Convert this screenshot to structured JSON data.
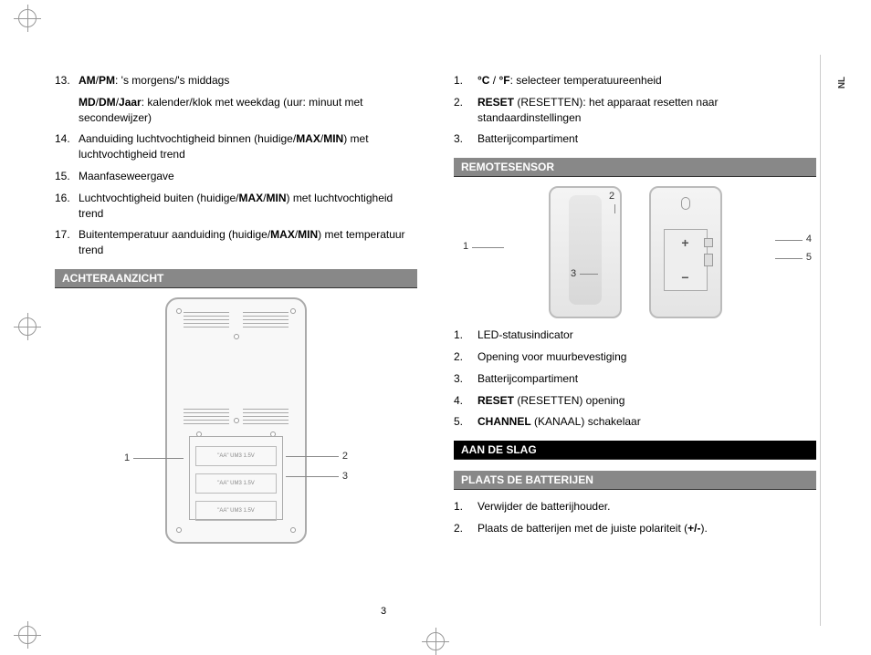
{
  "lang": "NL",
  "pageNumber": "3",
  "leftColumn": {
    "list1": [
      {
        "n": "13.",
        "parts": [
          {
            "bold": true,
            "t": "AM"
          },
          {
            "t": "/"
          },
          {
            "bold": true,
            "t": "PM"
          },
          {
            "t": ": 's morgens/'s middags"
          }
        ]
      },
      {
        "sub": true,
        "parts": [
          {
            "bold": true,
            "t": "MD"
          },
          {
            "t": "/"
          },
          {
            "bold": true,
            "t": "DM"
          },
          {
            "t": "/"
          },
          {
            "bold": true,
            "t": "Jaar"
          },
          {
            "t": ": kalender/klok met weekdag (uur: minuut met secondewijzer)"
          }
        ]
      },
      {
        "n": "14.",
        "parts": [
          {
            "t": "Aanduiding luchtvochtigheid binnen (huidige/"
          },
          {
            "bold": true,
            "t": "MAX"
          },
          {
            "t": "/"
          },
          {
            "bold": true,
            "t": "MIN"
          },
          {
            "t": ") met luchtvochtigheid trend"
          }
        ]
      },
      {
        "n": "15.",
        "parts": [
          {
            "t": "Maanfaseweergave"
          }
        ]
      },
      {
        "n": "16.",
        "parts": [
          {
            "t": "Luchtvochtigheid buiten (huidige/"
          },
          {
            "bold": true,
            "t": "MAX"
          },
          {
            "t": "/"
          },
          {
            "bold": true,
            "t": "MIN"
          },
          {
            "t": ") met luchtvochtigheid trend"
          }
        ]
      },
      {
        "n": "17.",
        "parts": [
          {
            "t": "Buitentemperatuur aanduiding (huidige/"
          },
          {
            "bold": true,
            "t": "MAX"
          },
          {
            "t": "/"
          },
          {
            "bold": true,
            "t": "MIN"
          },
          {
            "t": ") met temperatuur trend"
          }
        ]
      }
    ],
    "section1": "ACHTERAANZICHT",
    "backCallouts": [
      "1",
      "2",
      "3"
    ]
  },
  "rightColumn": {
    "list1": [
      {
        "n": "1.",
        "parts": [
          {
            "bold": true,
            "t": "°C"
          },
          {
            "t": " / "
          },
          {
            "bold": true,
            "t": "°F"
          },
          {
            "t": ": selecteer temperatuureenheid"
          }
        ]
      },
      {
        "n": "2.",
        "parts": [
          {
            "bold": true,
            "t": "RESET"
          },
          {
            "t": " (RESETTEN): het apparaat resetten naar standaardinstellingen"
          }
        ]
      },
      {
        "n": "3.",
        "parts": [
          {
            "t": "Batterijcompartiment"
          }
        ]
      }
    ],
    "section1": "REMOTESENSOR",
    "remoteCallouts": [
      "1",
      "2",
      "3",
      "4",
      "5"
    ],
    "list2": [
      {
        "n": "1.",
        "parts": [
          {
            "t": "LED-statusindicator"
          }
        ]
      },
      {
        "n": "2.",
        "parts": [
          {
            "t": "Opening voor muurbevestiging"
          }
        ]
      },
      {
        "n": "3.",
        "parts": [
          {
            "t": "Batterijcompartiment"
          }
        ]
      },
      {
        "n": "4.",
        "parts": [
          {
            "bold": true,
            "t": "RESET"
          },
          {
            "t": " (RESETTEN) opening"
          }
        ]
      },
      {
        "n": "5.",
        "parts": [
          {
            "bold": true,
            "t": "CHANNEL"
          },
          {
            "t": " (KANAAL) schakelaar"
          }
        ]
      }
    ],
    "section2": "AAN DE SLAG",
    "section3": "PLAATS DE BATTERIJEN",
    "list3": [
      {
        "n": "1.",
        "parts": [
          {
            "t": "Verwijder de batterijhouder."
          }
        ]
      },
      {
        "n": "2.",
        "parts": [
          {
            "t": "Plaats de batterijen met de juiste polariteit ("
          },
          {
            "bold": true,
            "t": "+/-"
          },
          {
            "t": ")."
          }
        ]
      }
    ]
  },
  "battLabel": "\"AA\" UM3 1.5V"
}
